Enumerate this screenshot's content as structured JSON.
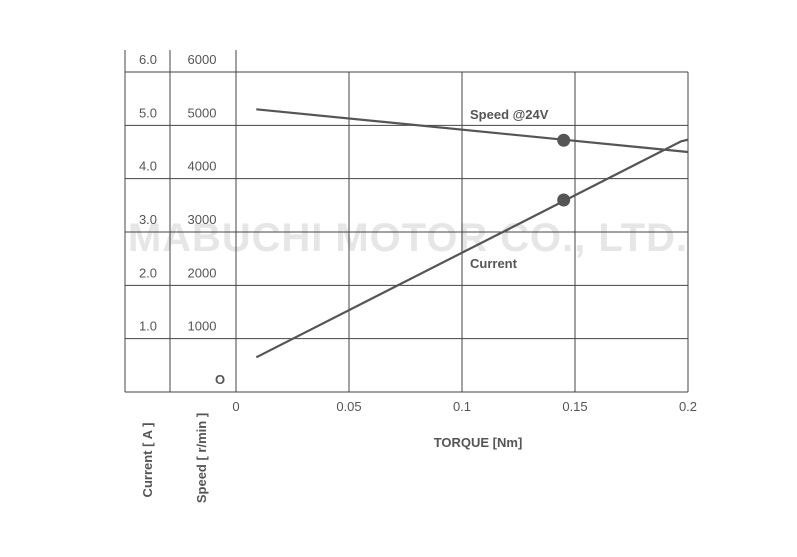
{
  "chart_data": {
    "type": "line",
    "watermark": "MABUCHI MOTOR CO., LTD.",
    "xlabel": "TORQUE [Nm]",
    "x_ticks": [
      "0",
      "0.05",
      "0.1",
      "0.15",
      "0.2"
    ],
    "xlim": [
      0,
      0.2
    ],
    "ylabel_current": "Current [ A ]",
    "ylabel_speed": "Speed [ r/min ]",
    "current_ticks": [
      "1.0",
      "2.0",
      "3.0",
      "4.0",
      "5.0",
      "6.0"
    ],
    "speed_ticks": [
      "O",
      "1000",
      "2000",
      "3000",
      "4000",
      "5000",
      "6000"
    ],
    "current_lim": [
      0,
      6
    ],
    "speed_lim": [
      0,
      6000
    ],
    "grid": true,
    "series": [
      {
        "name": "Speed @24V",
        "axis": "speed",
        "x": [
          0.009,
          0.2
        ],
        "y": [
          5300,
          4500
        ],
        "marker": {
          "x": 0.145,
          "y": 4720
        }
      },
      {
        "name": "Current",
        "axis": "current",
        "x": [
          0.009,
          0.197,
          0.2
        ],
        "y": [
          0.65,
          4.7,
          4.73
        ],
        "marker": {
          "x": 0.145,
          "y": 3.6
        }
      }
    ]
  }
}
